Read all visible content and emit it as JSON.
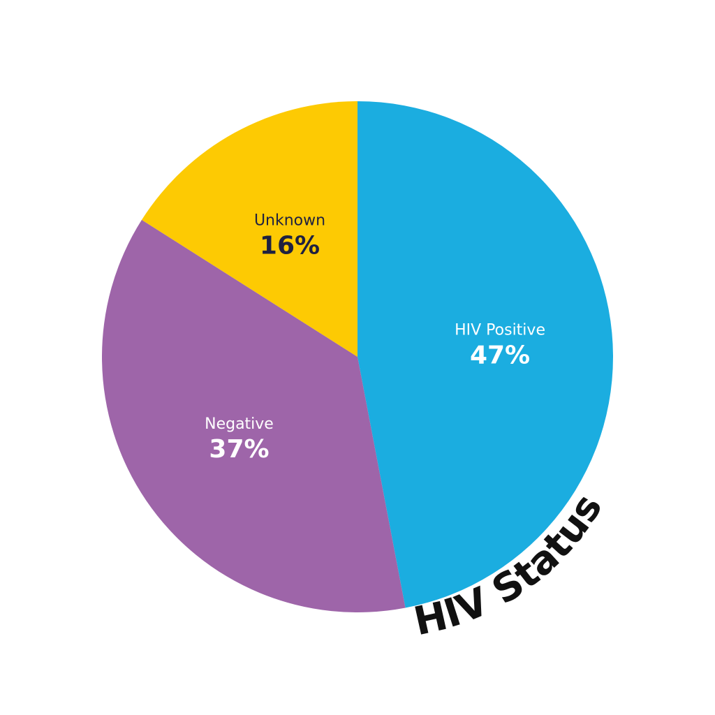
{
  "chart_data": {
    "type": "pie",
    "title": "HIV Status",
    "start_angle_deg": 0,
    "direction": "clockwise",
    "slices": [
      {
        "label": "HIV Positive",
        "value": 47,
        "value_label": "47%",
        "color": "#1BADE0",
        "label_color": "#ffffff",
        "value_color": "#ffffff"
      },
      {
        "label": "Negative",
        "value": 37,
        "value_label": "37%",
        "color": "#9E65A9",
        "label_color": "#ffffff",
        "value_color": "#ffffff"
      },
      {
        "label": "Unknown",
        "value": 16,
        "value_label": "16%",
        "color": "#FDCA03",
        "label_color": "#1F2140",
        "value_color": "#1F2140"
      }
    ]
  }
}
